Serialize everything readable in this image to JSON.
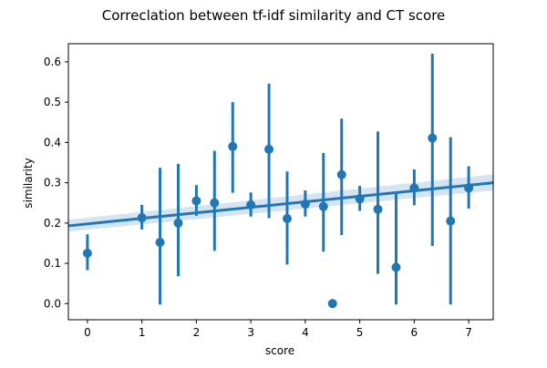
{
  "chart_data": {
    "type": "scatter",
    "title": "Correclation between tf-idf similarity and CT score",
    "xlabel": "score",
    "ylabel": "similarity",
    "xlim": [
      -0.35,
      7.45
    ],
    "ylim": [
      -0.04,
      0.645
    ],
    "xticks": [
      0,
      1,
      2,
      3,
      4,
      5,
      6,
      7
    ],
    "yticks": [
      0.0,
      0.1,
      0.2,
      0.3,
      0.4,
      0.5,
      0.6
    ],
    "grid": false,
    "legend": "none",
    "colors": {
      "series": "#1f77b4",
      "band": "#c6dbef"
    },
    "points": [
      {
        "x": 0.0,
        "y": 0.125,
        "lo": 0.083,
        "hi": 0.172
      },
      {
        "x": 1.0,
        "y": 0.213,
        "lo": 0.184,
        "hi": 0.245
      },
      {
        "x": 1.333,
        "y": 0.152,
        "lo": -0.002,
        "hi": 0.337
      },
      {
        "x": 1.667,
        "y": 0.2,
        "lo": 0.068,
        "hi": 0.347
      },
      {
        "x": 2.0,
        "y": 0.255,
        "lo": 0.218,
        "hi": 0.294
      },
      {
        "x": 2.333,
        "y": 0.25,
        "lo": 0.131,
        "hi": 0.379
      },
      {
        "x": 2.667,
        "y": 0.39,
        "lo": 0.275,
        "hi": 0.5
      },
      {
        "x": 3.0,
        "y": 0.245,
        "lo": 0.216,
        "hi": 0.276
      },
      {
        "x": 3.333,
        "y": 0.383,
        "lo": 0.212,
        "hi": 0.546
      },
      {
        "x": 3.667,
        "y": 0.211,
        "lo": 0.097,
        "hi": 0.328
      },
      {
        "x": 4.0,
        "y": 0.247,
        "lo": 0.216,
        "hi": 0.281
      },
      {
        "x": 4.333,
        "y": 0.241,
        "lo": 0.129,
        "hi": 0.374
      },
      {
        "x": 4.5,
        "y": 0.0,
        "lo": 0.0,
        "hi": 0.0
      },
      {
        "x": 4.667,
        "y": 0.32,
        "lo": 0.17,
        "hi": 0.459
      },
      {
        "x": 5.0,
        "y": 0.26,
        "lo": 0.23,
        "hi": 0.292
      },
      {
        "x": 5.333,
        "y": 0.234,
        "lo": 0.074,
        "hi": 0.427
      },
      {
        "x": 5.667,
        "y": 0.09,
        "lo": -0.002,
        "hi": 0.277
      },
      {
        "x": 6.0,
        "y": 0.287,
        "lo": 0.244,
        "hi": 0.333
      },
      {
        "x": 6.333,
        "y": 0.411,
        "lo": 0.143,
        "hi": 0.62
      },
      {
        "x": 6.667,
        "y": 0.205,
        "lo": -0.002,
        "hi": 0.413
      },
      {
        "x": 7.0,
        "y": 0.287,
        "lo": 0.236,
        "hi": 0.341
      }
    ],
    "regression": {
      "x_start": -0.35,
      "y_start": 0.193,
      "x_end": 7.45,
      "y_end": 0.3,
      "ci_start": [
        0.179,
        0.208
      ],
      "ci_end": [
        0.281,
        0.321
      ]
    }
  }
}
